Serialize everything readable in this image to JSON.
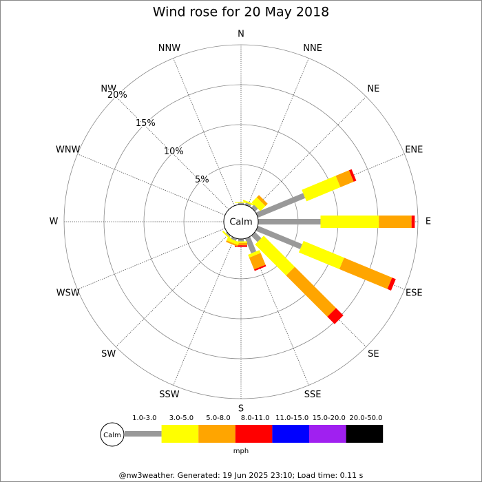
{
  "chart_data": {
    "type": "windrose",
    "title": "Wind rose for 20 May 2018",
    "directions": [
      "N",
      "NNE",
      "NE",
      "ENE",
      "E",
      "ESE",
      "SE",
      "SSE",
      "S",
      "SSW",
      "SW",
      "WSW",
      "W",
      "WNW",
      "NW",
      "NNW"
    ],
    "calm_label": "Calm",
    "unit": "mph",
    "ylim": [
      0,
      20
    ],
    "yticks": [
      {
        "value": 5,
        "label": "5%"
      },
      {
        "value": 10,
        "label": "10%"
      },
      {
        "value": 15,
        "label": "15%"
      },
      {
        "value": 20,
        "label": "20%"
      }
    ],
    "series": [
      {
        "name": "1.0-3.0",
        "color": "#999999",
        "values": [
          0.2,
          0.3,
          0.5,
          6.4,
          7.8,
          6.0,
          1.1,
          2.0,
          0.3,
          0.3,
          0.2,
          0,
          0,
          0,
          0,
          0
        ]
      },
      {
        "name": "3.0-5.0",
        "color": "#ffff00",
        "values": [
          0.1,
          0.2,
          0.9,
          4.6,
          7.3,
          5.5,
          5.5,
          0.4,
          0.2,
          0.4,
          0.2,
          0,
          0,
          0,
          0,
          0
        ]
      },
      {
        "name": "5.0-8.0",
        "color": "#ffa500",
        "values": [
          0,
          0,
          0.4,
          1.8,
          4.1,
          6.5,
          7.3,
          1.6,
          0.3,
          0.2,
          0,
          0,
          0,
          0,
          0,
          0
        ]
      },
      {
        "name": "8.0-11.0",
        "color": "#ff0000",
        "values": [
          0,
          0,
          0,
          0.35,
          0.4,
          0.5,
          1.3,
          0.2,
          0.2,
          0,
          0,
          0,
          0,
          0,
          0,
          0
        ]
      },
      {
        "name": "11.0-15.0",
        "color": "#0000ff",
        "values": [
          0,
          0,
          0,
          0,
          0,
          0,
          0,
          0,
          0,
          0,
          0,
          0,
          0,
          0,
          0,
          0
        ]
      },
      {
        "name": "15.0-20.0",
        "color": "#a020f0",
        "values": [
          0,
          0,
          0,
          0,
          0,
          0,
          0,
          0,
          0,
          0,
          0,
          0,
          0,
          0,
          0,
          0
        ]
      },
      {
        "name": "20.0-50.0",
        "color": "#000000",
        "values": [
          0,
          0,
          0,
          0,
          0,
          0,
          0,
          0,
          0,
          0,
          0,
          0,
          0,
          0,
          0,
          0
        ]
      }
    ]
  },
  "footer": "@nw3weather. Generated: 19 Jun 2025 23:10; Load time: 0.11 s"
}
